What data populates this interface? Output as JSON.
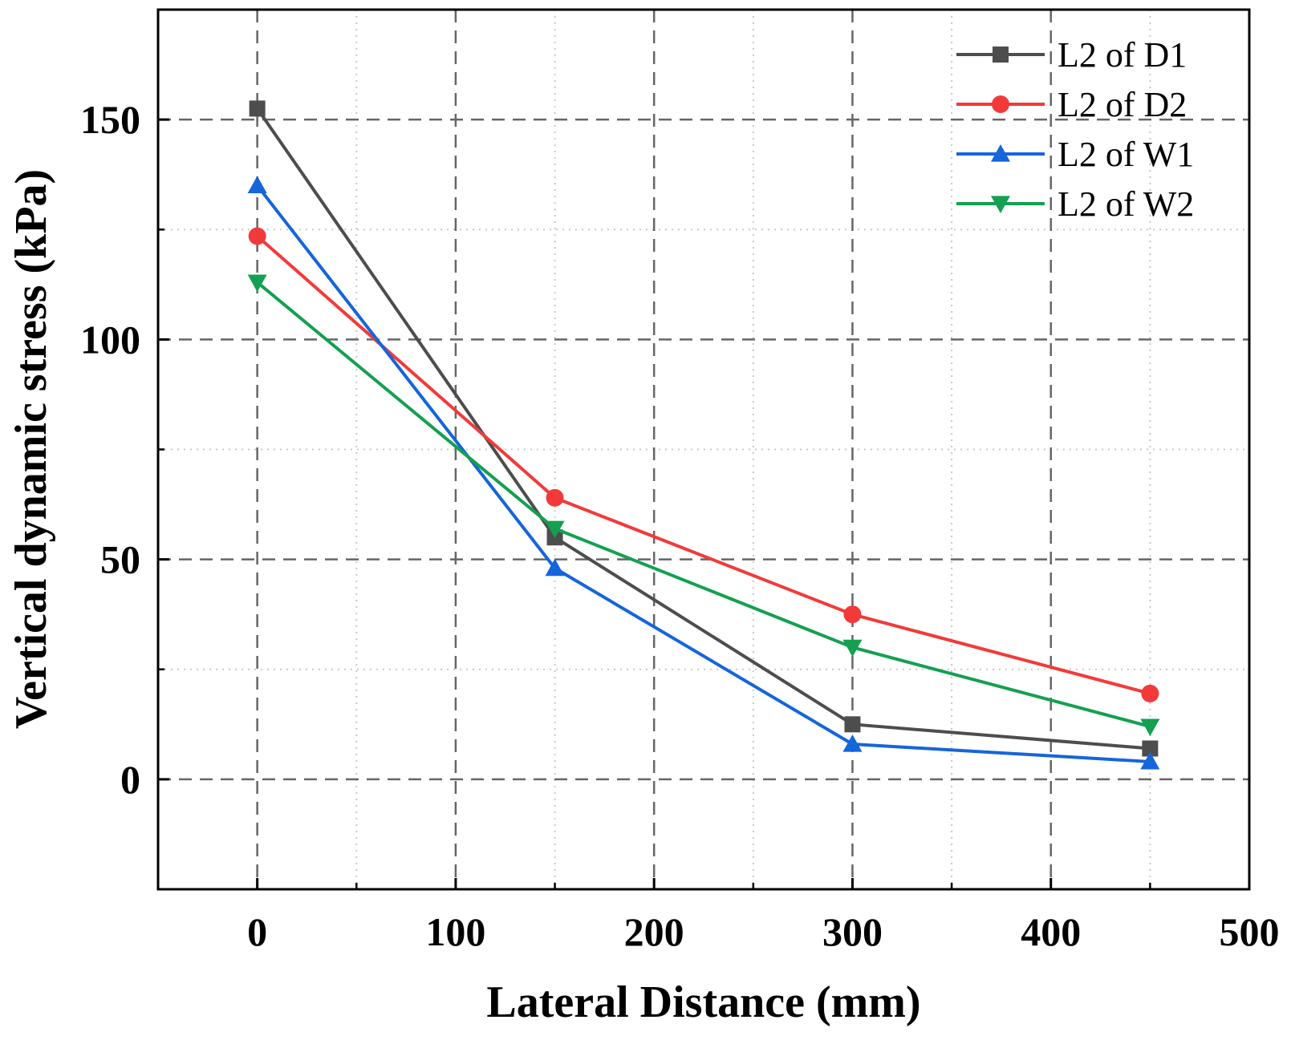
{
  "chart_data": {
    "type": "line",
    "title": "",
    "xlabel": "Lateral Distance (mm)",
    "ylabel": "Vertical dynamic stress (kPa)",
    "xlim": [
      -50,
      500
    ],
    "ylim": [
      -25,
      175
    ],
    "xticks": [
      0,
      100,
      200,
      300,
      400,
      500
    ],
    "yticks": [
      0,
      50,
      100,
      150
    ],
    "x_minor_step": 50,
    "y_minor_step": 25,
    "grid": true,
    "legend_position": "top-right",
    "x": [
      0,
      150,
      300,
      450
    ],
    "series": [
      {
        "name": "L2 of D1",
        "color": "#4d4d4d",
        "marker": "square",
        "values": [
          152.5,
          55,
          12.5,
          7
        ]
      },
      {
        "name": "L2 of D2",
        "color": "#f23a3a",
        "marker": "circle",
        "values": [
          123.5,
          64,
          37.5,
          19.5
        ]
      },
      {
        "name": "L2 of W1",
        "color": "#1565db",
        "marker": "triangle-up",
        "values": [
          135,
          48,
          8,
          4
        ]
      },
      {
        "name": "L2 of W2",
        "color": "#14a050",
        "marker": "triangle-down",
        "values": [
          113,
          57,
          30,
          12
        ]
      }
    ]
  }
}
